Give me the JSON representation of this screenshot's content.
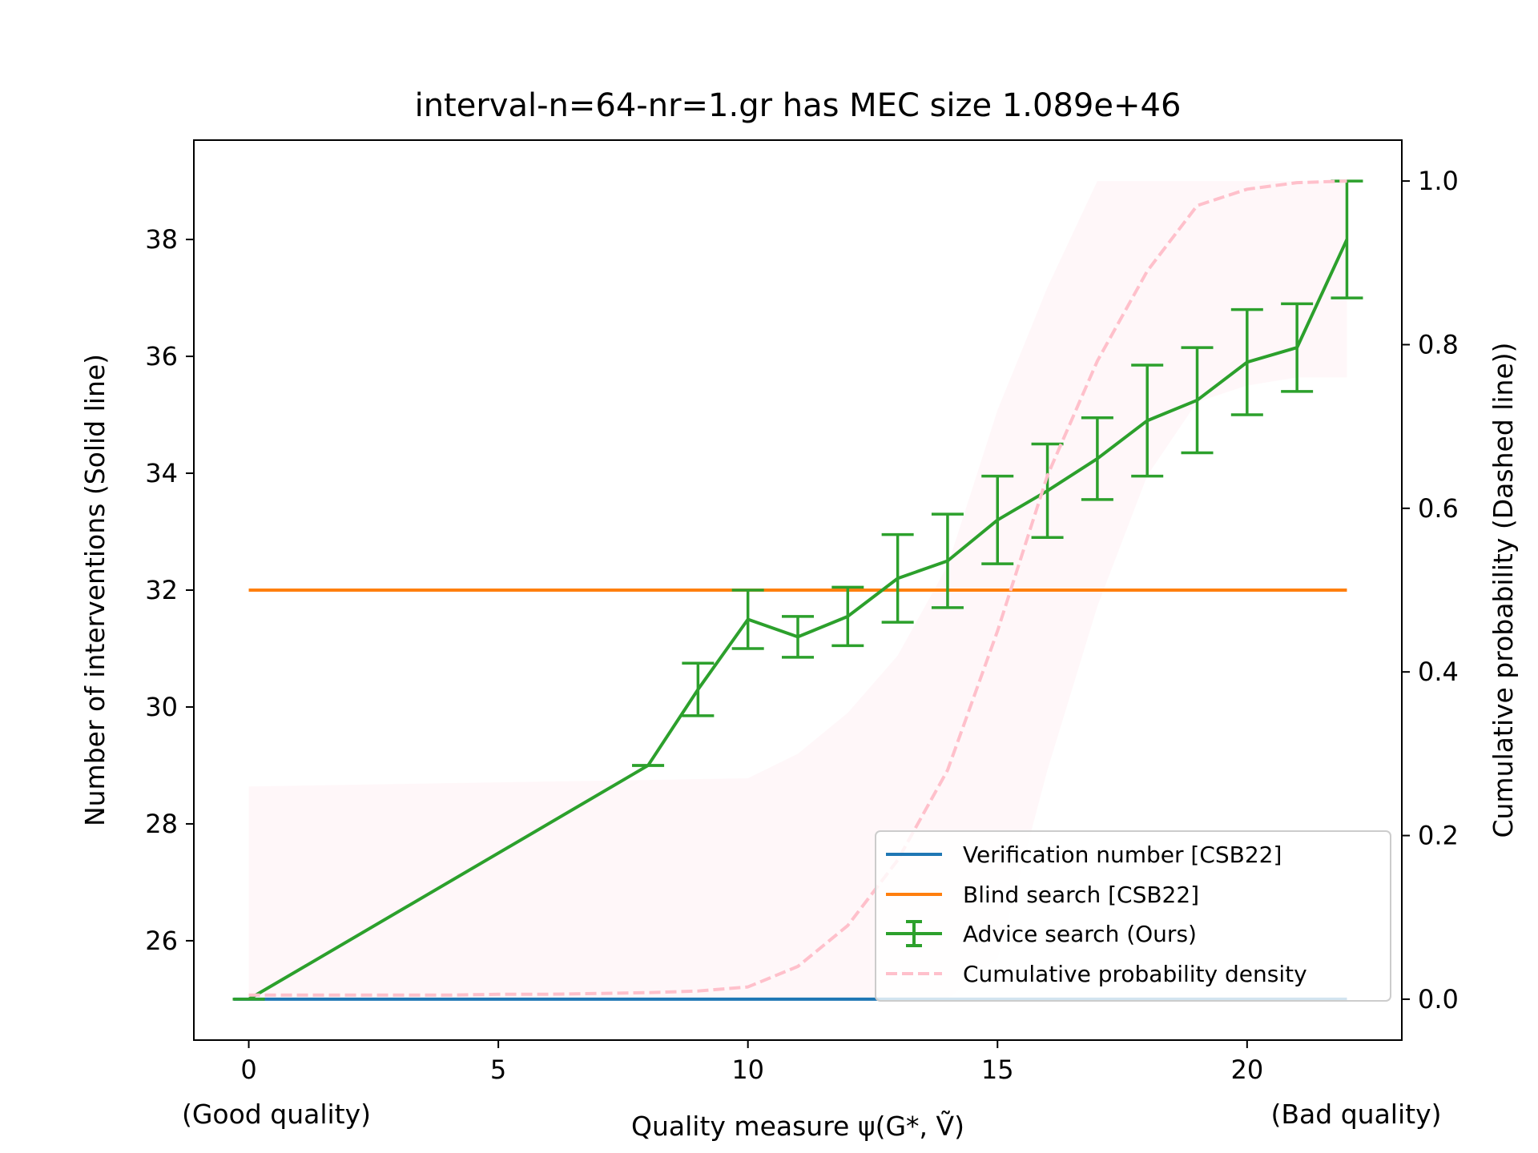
{
  "chart_data": {
    "type": "line",
    "title": "interval-n=64-nr=1.gr has MEC size 1.089e+46",
    "xlabel": "Quality measure ψ(G*, Ṽ)",
    "xlabel_left": "(Good quality)",
    "xlabel_right": "(Bad quality)",
    "ylabel_left": "Number of interventions (Solid line)",
    "ylabel_right": "Cumulative probability (Dashed line))",
    "xlim": [
      -1.1,
      23.1
    ],
    "ylim_left": [
      24.3,
      39.7
    ],
    "ylim_right": [
      -0.05,
      1.05
    ],
    "x_ticks": [
      0,
      5,
      10,
      15,
      20
    ],
    "y_ticks_left": [
      26,
      28,
      30,
      32,
      34,
      36,
      38
    ],
    "y_ticks_right": [
      "0.0",
      "0.2",
      "0.4",
      "0.6",
      "0.8",
      "1.0"
    ],
    "grid": false,
    "legend_position": "lower-right",
    "series": [
      {
        "name": "Verification number [CSB22]",
        "color": "#1f77b4",
        "style": "solid",
        "axis": "left",
        "x": [
          -0.3,
          22
        ],
        "y": [
          25,
          25
        ]
      },
      {
        "name": "Blind search [CSB22]",
        "color": "#ff7f0e",
        "style": "solid",
        "axis": "left",
        "x": [
          0,
          22
        ],
        "y": [
          32,
          32
        ]
      },
      {
        "name": "Advice search (Ours)",
        "color": "#2ca02c",
        "style": "errorbar",
        "axis": "left",
        "x": [
          0,
          8,
          9,
          10,
          11,
          12,
          13,
          14,
          15,
          16,
          17,
          18,
          19,
          20,
          21,
          22
        ],
        "y": [
          25.0,
          29.0,
          30.3,
          31.5,
          31.2,
          31.55,
          32.2,
          32.5,
          33.2,
          33.7,
          34.25,
          34.9,
          35.25,
          35.9,
          36.15,
          38.0
        ],
        "err": [
          0.0,
          0.0,
          0.45,
          0.5,
          0.35,
          0.5,
          0.75,
          0.8,
          0.75,
          0.8,
          0.7,
          0.95,
          0.9,
          0.9,
          0.75,
          1.0
        ]
      },
      {
        "name": "Cumulative probability density",
        "color": "#ffc0cb",
        "style": "dashed",
        "axis": "right",
        "x": [
          0,
          1,
          2,
          3,
          4,
          5,
          6,
          7,
          8,
          9,
          10,
          11,
          12,
          13,
          14,
          15,
          16,
          17,
          18,
          19,
          20,
          21,
          22
        ],
        "y": [
          0.005,
          0.005,
          0.005,
          0.005,
          0.005,
          0.006,
          0.006,
          0.007,
          0.008,
          0.01,
          0.015,
          0.04,
          0.09,
          0.17,
          0.28,
          0.45,
          0.64,
          0.78,
          0.89,
          0.97,
          0.99,
          0.998,
          1.0
        ]
      }
    ],
    "band": {
      "color": "#ffc0cb",
      "axis": "right",
      "x": [
        0,
        10,
        11,
        12,
        13,
        14,
        15,
        16,
        17,
        18,
        19,
        20,
        21,
        22
      ],
      "upper": [
        0.26,
        0.27,
        0.3,
        0.35,
        0.42,
        0.53,
        0.72,
        0.87,
        1.0,
        1.0,
        1.0,
        1.0,
        1.0,
        1.0
      ],
      "lower": [
        0.0,
        0.0,
        0.0,
        0.0,
        0.0,
        0.0,
        0.05,
        0.28,
        0.48,
        0.64,
        0.73,
        0.75,
        0.76,
        0.76
      ]
    }
  }
}
